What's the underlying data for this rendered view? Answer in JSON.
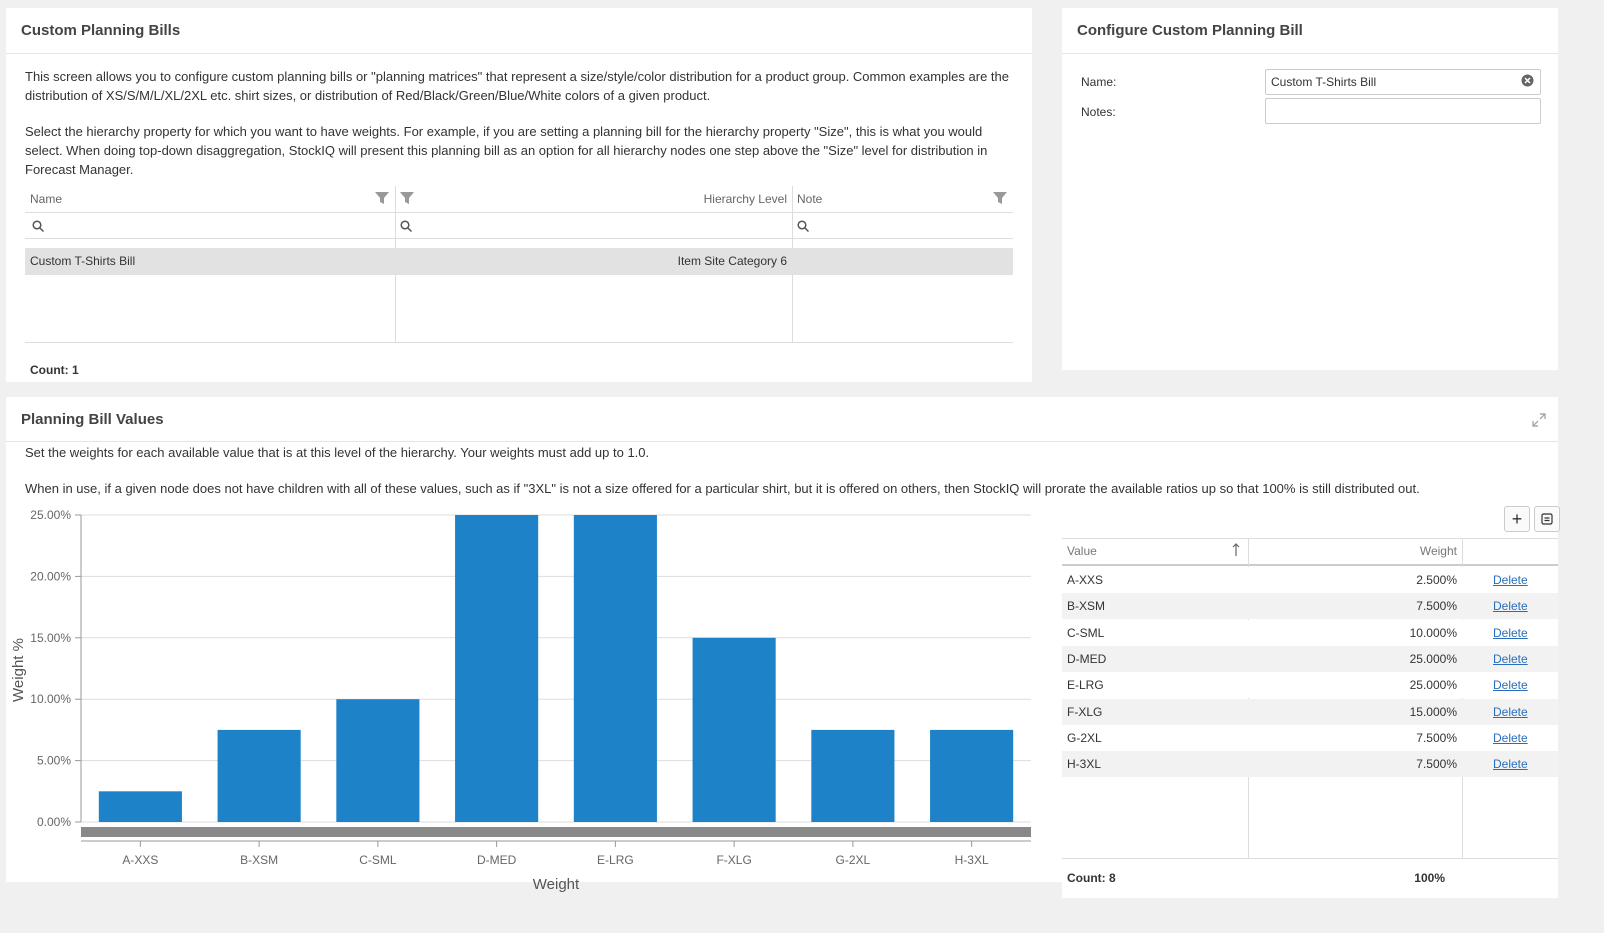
{
  "bills_panel": {
    "title": "Custom Planning Bills",
    "desc1": "This screen allows you to configure custom planning bills or \"planning matrices\" that represent a size/style/color distribution for a product group. Common examples are the distribution of XS/S/M/L/XL/2XL etc. shirt sizes, or distribution of Red/Black/Green/Blue/White colors of a given product.",
    "desc2": "Select the hierarchy property for which you want to have weights. For example, if you are setting a planning bill for the hierarchy property \"Size\", this is what you would select. When doing top-down disaggregation, StockIQ will present this planning bill as an option for all hierarchy nodes one step above the \"Size\" level for distribution in Forecast Manager.",
    "columns": {
      "name": "Name",
      "level": "Hierarchy Level",
      "note": "Note"
    },
    "rows": [
      {
        "name": "Custom T-Shirts Bill",
        "level": "Item Site Category 6",
        "note": ""
      }
    ],
    "count_label": "Count: 1"
  },
  "config_panel": {
    "title": "Configure Custom Planning Bill",
    "name_label": "Name:",
    "name_value": "Custom T-Shirts Bill",
    "notes_label": "Notes:",
    "notes_value": ""
  },
  "values_panel": {
    "title": "Planning Bill Values",
    "desc1": "Set the weights for each available value that is at this level of the hierarchy. Your weights must add up to 1.0.",
    "desc2": "When in use, if a given node does not have children with all of these values, such as if \"3XL\" is not a size offered for a particular shirt, but it is offered on others, then StockIQ will prorate the available ratios up so that 100% is still distributed out.",
    "add_label": "+",
    "table": {
      "col_value": "Value",
      "col_weight": "Weight",
      "delete_label": "Delete",
      "rows": [
        {
          "value": "A-XXS",
          "weight": "2.500%"
        },
        {
          "value": "B-XSM",
          "weight": "7.500%"
        },
        {
          "value": "C-SML",
          "weight": "10.000%"
        },
        {
          "value": "D-MED",
          "weight": "25.000%"
        },
        {
          "value": "E-LRG",
          "weight": "25.000%"
        },
        {
          "value": "F-XLG",
          "weight": "15.000%"
        },
        {
          "value": "G-2XL",
          "weight": "7.500%"
        },
        {
          "value": "H-3XL",
          "weight": "7.500%"
        }
      ],
      "count_label": "Count: 8",
      "total_label": "100%"
    }
  },
  "chart_data": {
    "type": "bar",
    "categories": [
      "A-XXS",
      "B-XSM",
      "C-SML",
      "D-MED",
      "E-LRG",
      "F-XLG",
      "G-2XL",
      "H-3XL"
    ],
    "values": [
      2.5,
      7.5,
      10,
      25,
      25,
      15,
      7.5,
      7.5
    ],
    "ylabel": "Weight %",
    "xlabel": "Weight",
    "ylim": [
      0,
      25
    ],
    "yticks": [
      "0.00%",
      "5.00%",
      "10.00%",
      "15.00%",
      "20.00%",
      "25.00%"
    ],
    "bar_color": "#1e82c8",
    "grid": true
  }
}
